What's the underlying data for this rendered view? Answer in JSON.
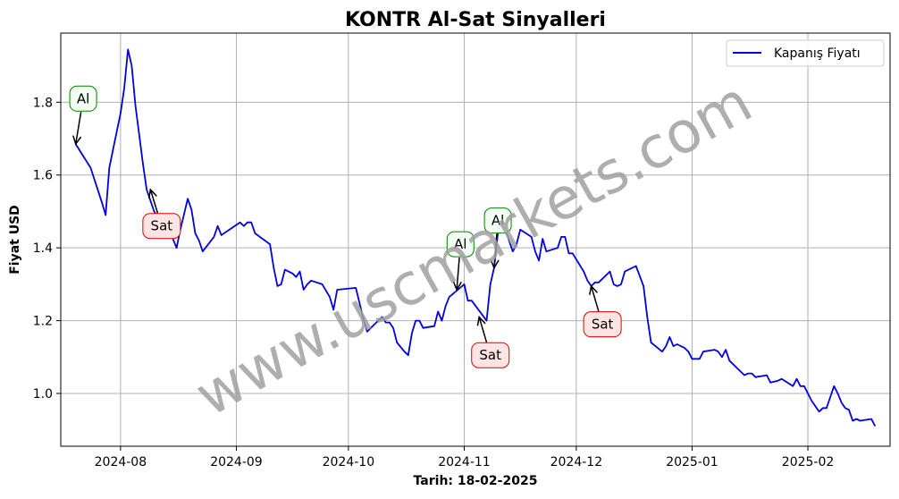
{
  "chart_data": {
    "type": "line",
    "title": "KONTR Al-Sat Sinyalleri",
    "xlabel": "Tarih: 18-02-2025",
    "ylabel": "Fiyat USD",
    "x_ticks": [
      "2024-08",
      "2024-09",
      "2024-10",
      "2024-11",
      "2024-12",
      "2025-01",
      "2025-02"
    ],
    "y_ticks": [
      "1.0",
      "1.2",
      "1.4",
      "1.6",
      "1.8"
    ],
    "ylim": [
      0.855,
      1.99
    ],
    "grid": true,
    "legend_position": "top-right",
    "series": [
      {
        "name": "Kapanış Fiyatı",
        "color": "#0000dd",
        "points": [
          [
            "2024-07-20",
            1.685
          ],
          [
            "2024-07-24",
            1.62
          ],
          [
            "2024-07-27",
            1.525
          ],
          [
            "2024-07-28",
            1.49
          ],
          [
            "2024-07-29",
            1.62
          ],
          [
            "2024-08-01",
            1.77
          ],
          [
            "2024-08-02",
            1.84
          ],
          [
            "2024-08-03",
            1.945
          ],
          [
            "2024-08-04",
            1.9
          ],
          [
            "2024-08-05",
            1.79
          ],
          [
            "2024-08-07",
            1.63
          ],
          [
            "2024-08-08",
            1.56
          ],
          [
            "2024-08-10",
            1.5
          ],
          [
            "2024-08-12",
            1.47
          ],
          [
            "2024-08-14",
            1.45
          ],
          [
            "2024-08-16",
            1.4
          ],
          [
            "2024-08-17",
            1.45
          ],
          [
            "2024-08-19",
            1.535
          ],
          [
            "2024-08-20",
            1.505
          ],
          [
            "2024-08-21",
            1.44
          ],
          [
            "2024-08-22",
            1.42
          ],
          [
            "2024-08-23",
            1.39
          ],
          [
            "2024-08-26",
            1.43
          ],
          [
            "2024-08-27",
            1.46
          ],
          [
            "2024-08-28",
            1.435
          ],
          [
            "2024-09-02",
            1.47
          ],
          [
            "2024-09-03",
            1.46
          ],
          [
            "2024-09-04",
            1.47
          ],
          [
            "2024-09-05",
            1.47
          ],
          [
            "2024-09-06",
            1.44
          ],
          [
            "2024-09-08",
            1.425
          ],
          [
            "2024-09-10",
            1.41
          ],
          [
            "2024-09-11",
            1.345
          ],
          [
            "2024-09-12",
            1.295
          ],
          [
            "2024-09-13",
            1.3
          ],
          [
            "2024-09-14",
            1.34
          ],
          [
            "2024-09-16",
            1.33
          ],
          [
            "2024-09-17",
            1.32
          ],
          [
            "2024-09-18",
            1.335
          ],
          [
            "2024-09-19",
            1.285
          ],
          [
            "2024-09-20",
            1.3
          ],
          [
            "2024-09-21",
            1.31
          ],
          [
            "2024-09-24",
            1.3
          ],
          [
            "2024-09-26",
            1.265
          ],
          [
            "2024-09-27",
            1.23
          ],
          [
            "2024-09-28",
            1.285
          ],
          [
            "2024-10-03",
            1.29
          ],
          [
            "2024-10-05",
            1.205
          ],
          [
            "2024-10-06",
            1.17
          ],
          [
            "2024-10-08",
            1.19
          ],
          [
            "2024-10-10",
            1.21
          ],
          [
            "2024-10-11",
            1.195
          ],
          [
            "2024-10-12",
            1.195
          ],
          [
            "2024-10-13",
            1.18
          ],
          [
            "2024-10-14",
            1.14
          ],
          [
            "2024-10-16",
            1.115
          ],
          [
            "2024-10-17",
            1.105
          ],
          [
            "2024-10-18",
            1.165
          ],
          [
            "2024-10-19",
            1.2
          ],
          [
            "2024-10-20",
            1.2
          ],
          [
            "2024-10-21",
            1.18
          ],
          [
            "2024-10-24",
            1.185
          ],
          [
            "2024-10-25",
            1.225
          ],
          [
            "2024-10-26",
            1.2
          ],
          [
            "2024-10-27",
            1.24
          ],
          [
            "2024-10-28",
            1.265
          ],
          [
            "2024-11-01",
            1.3
          ],
          [
            "2024-11-02",
            1.255
          ],
          [
            "2024-11-03",
            1.255
          ],
          [
            "2024-11-07",
            1.2
          ],
          [
            "2024-11-08",
            1.3
          ],
          [
            "2024-11-09",
            1.345
          ],
          [
            "2024-11-10",
            1.44
          ],
          [
            "2024-11-11",
            1.47
          ],
          [
            "2024-11-12",
            1.45
          ],
          [
            "2024-11-13",
            1.42
          ],
          [
            "2024-11-14",
            1.39
          ],
          [
            "2024-11-15",
            1.41
          ],
          [
            "2024-11-16",
            1.45
          ],
          [
            "2024-11-19",
            1.43
          ],
          [
            "2024-11-20",
            1.39
          ],
          [
            "2024-11-21",
            1.365
          ],
          [
            "2024-11-22",
            1.425
          ],
          [
            "2024-11-23",
            1.39
          ],
          [
            "2024-11-26",
            1.4
          ],
          [
            "2024-11-27",
            1.43
          ],
          [
            "2024-11-28",
            1.43
          ],
          [
            "2024-11-29",
            1.385
          ],
          [
            "2024-11-30",
            1.385
          ],
          [
            "2024-12-03",
            1.335
          ],
          [
            "2024-12-04",
            1.31
          ],
          [
            "2024-12-05",
            1.295
          ],
          [
            "2024-12-06",
            1.305
          ],
          [
            "2024-12-07",
            1.305
          ],
          [
            "2024-12-10",
            1.335
          ],
          [
            "2024-12-11",
            1.3
          ],
          [
            "2024-12-12",
            1.295
          ],
          [
            "2024-12-13",
            1.3
          ],
          [
            "2024-12-14",
            1.335
          ],
          [
            "2024-12-17",
            1.35
          ],
          [
            "2024-12-19",
            1.295
          ],
          [
            "2024-12-20",
            1.21
          ],
          [
            "2024-12-21",
            1.14
          ],
          [
            "2024-12-24",
            1.115
          ],
          [
            "2024-12-25",
            1.13
          ],
          [
            "2024-12-26",
            1.155
          ],
          [
            "2024-12-27",
            1.13
          ],
          [
            "2024-12-28",
            1.135
          ],
          [
            "2024-12-30",
            1.125
          ],
          [
            "2024-12-31",
            1.115
          ],
          [
            "2025-01-01",
            1.095
          ],
          [
            "2025-01-03",
            1.095
          ],
          [
            "2025-01-04",
            1.115
          ],
          [
            "2025-01-07",
            1.12
          ],
          [
            "2025-01-08",
            1.115
          ],
          [
            "2025-01-09",
            1.1
          ],
          [
            "2025-01-10",
            1.12
          ],
          [
            "2025-01-11",
            1.09
          ],
          [
            "2025-01-15",
            1.05
          ],
          [
            "2025-01-16",
            1.055
          ],
          [
            "2025-01-17",
            1.055
          ],
          [
            "2025-01-18",
            1.045
          ],
          [
            "2025-01-21",
            1.05
          ],
          [
            "2025-01-22",
            1.03
          ],
          [
            "2025-01-24",
            1.035
          ],
          [
            "2025-01-25",
            1.04
          ],
          [
            "2025-01-28",
            1.02
          ],
          [
            "2025-01-29",
            1.04
          ],
          [
            "2025-01-30",
            1.02
          ],
          [
            "2025-01-31",
            1.02
          ],
          [
            "2025-02-02",
            0.98
          ],
          [
            "2025-02-03",
            0.965
          ],
          [
            "2025-02-04",
            0.95
          ],
          [
            "2025-02-05",
            0.96
          ],
          [
            "2025-02-06",
            0.96
          ],
          [
            "2025-02-07",
            0.99
          ],
          [
            "2025-02-08",
            1.02
          ],
          [
            "2025-02-09",
            1.0
          ],
          [
            "2025-02-10",
            0.975
          ],
          [
            "2025-02-11",
            0.96
          ],
          [
            "2025-02-12",
            0.955
          ],
          [
            "2025-02-13",
            0.925
          ],
          [
            "2025-02-14",
            0.93
          ],
          [
            "2025-02-15",
            0.925
          ],
          [
            "2025-02-18",
            0.93
          ],
          [
            "2025-02-19",
            0.91
          ]
        ]
      }
    ],
    "annotations": [
      {
        "type": "buy",
        "text": "Al",
        "date": "2024-07-20",
        "price": 1.685,
        "label_date": "2024-07-22",
        "label_price": 1.81
      },
      {
        "type": "sell",
        "text": "Sat",
        "date": "2024-08-09",
        "price": 1.56,
        "label_date": "2024-08-12",
        "label_price": 1.46
      },
      {
        "type": "buy",
        "text": "Al",
        "date": "2024-10-30",
        "price": 1.285,
        "label_date": "2024-10-31",
        "label_price": 1.41
      },
      {
        "type": "sell",
        "text": "Sat",
        "date": "2024-11-05",
        "price": 1.21,
        "label_date": "2024-11-08",
        "label_price": 1.105
      },
      {
        "type": "buy",
        "text": "Al",
        "date": "2024-11-09",
        "price": 1.345,
        "label_date": "2024-11-10",
        "label_price": 1.475
      },
      {
        "type": "sell",
        "text": "Sat",
        "date": "2024-12-05",
        "price": 1.295,
        "label_date": "2024-12-08",
        "label_price": 1.19
      }
    ],
    "watermark": "www.uscmarkets.com",
    "colors": {
      "line": "#0000dd",
      "buy_border": "#008000",
      "buy_fill": "#f2fff2",
      "sell_border": "#e00000",
      "sell_fill": "#ffe4e4",
      "grid": "#b0b0b0",
      "watermark": "#a0a0a0"
    }
  }
}
